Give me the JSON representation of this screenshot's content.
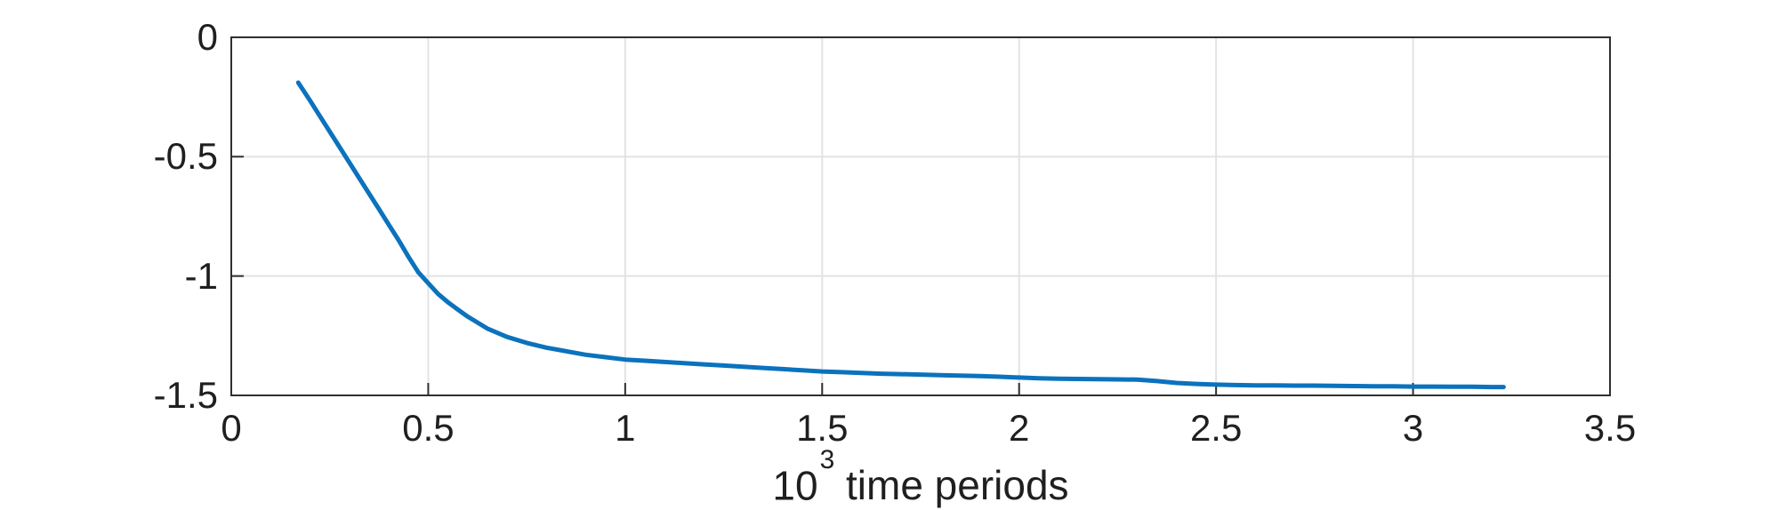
{
  "chart_data": {
    "type": "line",
    "title": "",
    "xlabel_parts": {
      "base": "10",
      "exponent": "3",
      "rest": "time periods"
    },
    "xlabel_full": "10^3 time periods",
    "ylabel": "",
    "xlim": [
      0,
      3.5
    ],
    "ylim": [
      -1.5,
      0
    ],
    "x_ticks": [
      0,
      0.5,
      1,
      1.5,
      2,
      2.5,
      3,
      3.5
    ],
    "x_tick_labels": [
      "0",
      "0.5",
      "1",
      "1.5",
      "2",
      "2.5",
      "3",
      "3.5"
    ],
    "y_ticks": [
      0,
      -0.5,
      -1,
      -1.5
    ],
    "y_tick_labels": [
      "0",
      "-0.5",
      "-1",
      "-1.5"
    ],
    "grid": true,
    "legend_position": "none",
    "series": [
      {
        "name": "series-1",
        "color": "#0b72bd",
        "x": [
          0.17,
          0.2,
          0.225,
          0.25,
          0.275,
          0.3,
          0.325,
          0.35,
          0.375,
          0.4,
          0.425,
          0.45,
          0.475,
          0.5,
          0.525,
          0.55,
          0.575,
          0.6,
          0.65,
          0.7,
          0.75,
          0.8,
          0.85,
          0.9,
          0.95,
          1.0,
          1.05,
          1.1,
          1.15,
          1.2,
          1.25,
          1.3,
          1.35,
          1.4,
          1.45,
          1.5,
          1.55,
          1.6,
          1.65,
          1.7,
          1.75,
          1.8,
          1.85,
          1.9,
          1.95,
          2.0,
          2.05,
          2.1,
          2.15,
          2.2,
          2.25,
          2.3,
          2.35,
          2.4,
          2.45,
          2.5,
          2.55,
          2.6,
          2.65,
          2.7,
          2.75,
          2.8,
          2.85,
          2.9,
          2.95,
          3.0,
          3.05,
          3.1,
          3.15,
          3.2,
          3.23
        ],
        "y": [
          -0.19,
          -0.265,
          -0.33,
          -0.395,
          -0.46,
          -0.525,
          -0.59,
          -0.655,
          -0.72,
          -0.785,
          -0.85,
          -0.92,
          -0.985,
          -1.03,
          -1.075,
          -1.11,
          -1.14,
          -1.17,
          -1.22,
          -1.255,
          -1.28,
          -1.3,
          -1.315,
          -1.33,
          -1.34,
          -1.35,
          -1.355,
          -1.36,
          -1.365,
          -1.37,
          -1.375,
          -1.38,
          -1.385,
          -1.39,
          -1.395,
          -1.4,
          -1.403,
          -1.406,
          -1.409,
          -1.411,
          -1.413,
          -1.415,
          -1.417,
          -1.419,
          -1.422,
          -1.425,
          -1.428,
          -1.43,
          -1.431,
          -1.432,
          -1.433,
          -1.434,
          -1.44,
          -1.448,
          -1.452,
          -1.455,
          -1.457,
          -1.458,
          -1.458,
          -1.459,
          -1.459,
          -1.46,
          -1.461,
          -1.462,
          -1.462,
          -1.463,
          -1.463,
          -1.464,
          -1.464,
          -1.465,
          -1.465
        ]
      }
    ]
  },
  "styles": {
    "background": "#ffffff",
    "axis_color": "#2f2f2f",
    "grid_color": "#e3e3e3",
    "tick_text_color": "#1f1f1f",
    "line_width": 5,
    "axis_width": 2,
    "tick_length": 14
  }
}
